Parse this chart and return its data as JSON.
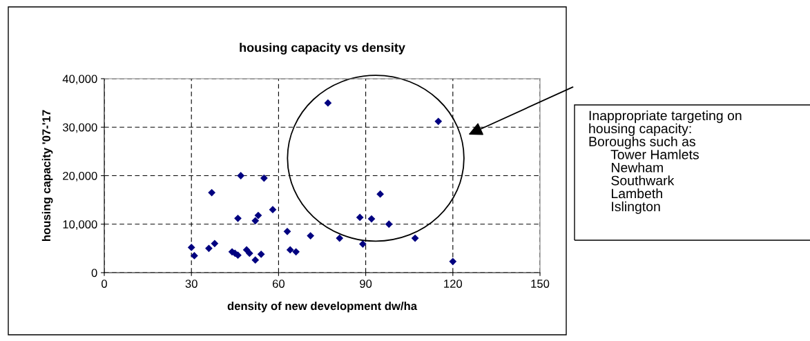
{
  "chart_data": {
    "type": "scatter",
    "title": "housing capacity vs density",
    "xlabel": "density of new development dw/ha",
    "ylabel": "housing capacity '07-'17",
    "x": [
      30,
      31,
      36,
      37,
      38,
      44,
      45,
      46,
      46,
      47,
      49,
      50,
      52,
      52,
      53,
      54,
      55,
      58,
      63,
      64,
      66,
      71,
      77,
      81,
      88,
      89,
      92,
      95,
      98,
      107,
      115,
      120
    ],
    "values": [
      5200,
      3500,
      5000,
      16500,
      6000,
      4300,
      4000,
      11200,
      3600,
      20000,
      4700,
      4000,
      10700,
      2600,
      11800,
      3800,
      19500,
      13000,
      8500,
      4700,
      4300,
      7600,
      35000,
      7100,
      11400,
      5900,
      11100,
      16200,
      10000,
      7100,
      31200,
      2300
    ],
    "color": "#000080",
    "marker": "diamond",
    "grid": true,
    "line_style": "dashed",
    "xlim": [
      0,
      150
    ],
    "xticks": [
      0,
      30,
      60,
      90,
      120,
      150
    ],
    "ylim": [
      0,
      40000
    ],
    "yticks": [
      {
        "value": 0,
        "label": "0"
      },
      {
        "value": 10000,
        "label": "10,000"
      },
      {
        "value": 20000,
        "label": "20,000"
      },
      {
        "value": 30000,
        "label": "30,000"
      },
      {
        "value": 40000,
        "label": "40,000"
      }
    ],
    "annotations": [
      "Inappropriate targeting on\nhousing capacity:\nBoroughs such as\n      Tower Hamlets\n      Newham\n      Southwark\n      Lambeth\n      Islington"
    ]
  }
}
